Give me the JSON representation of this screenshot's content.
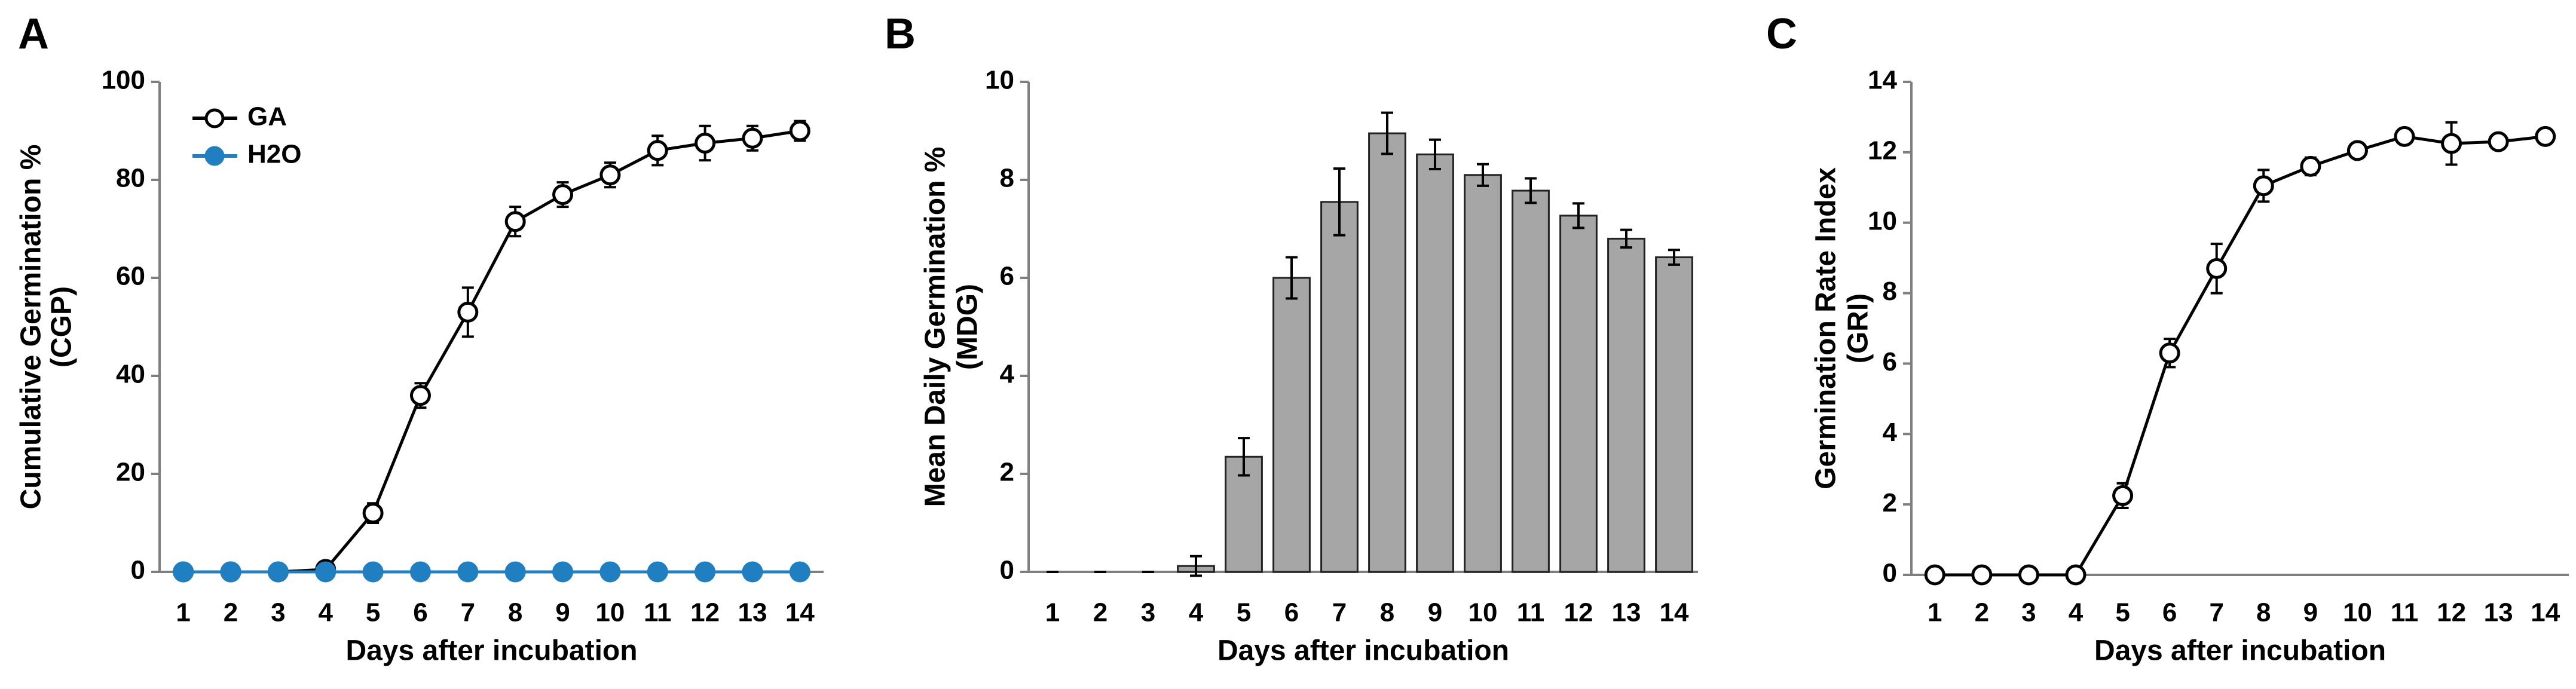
{
  "chart_data": [
    {
      "type": "line",
      "label": "A",
      "y_label": [
        "Cumulative Germination %",
        "(CGP)"
      ],
      "x_label": "Days after incubation",
      "categories": [
        "1",
        "2",
        "3",
        "4",
        "5",
        "6",
        "7",
        "8",
        "9",
        "10",
        "11",
        "12",
        "13",
        "14"
      ],
      "ylim": [
        0,
        100
      ],
      "yticks": [
        0,
        20,
        40,
        60,
        80,
        100
      ],
      "legend": "upper left",
      "series": [
        {
          "name": "GA",
          "color": "#000000",
          "marker": "open",
          "values": [
            0,
            0,
            0,
            0.5,
            12,
            36,
            53,
            71.5,
            77,
            81,
            86,
            87.5,
            88.5,
            90
          ],
          "errors": [
            0,
            0,
            0,
            0.5,
            2,
            2.5,
            5,
            3,
            2.5,
            2.5,
            3,
            3.5,
            2.5,
            2
          ]
        },
        {
          "name": "H2O",
          "color": "#1f7fc0",
          "marker": "filled",
          "values": [
            0,
            0,
            0,
            0,
            0,
            0,
            0,
            0,
            0,
            0,
            0,
            0,
            0,
            0
          ]
        }
      ]
    },
    {
      "type": "bar",
      "label": "B",
      "y_label": [
        "Mean Daily Germination %",
        "(MDG)"
      ],
      "x_label": "Days after incubation",
      "categories": [
        "1",
        "2",
        "3",
        "4",
        "5",
        "6",
        "7",
        "8",
        "9",
        "10",
        "11",
        "12",
        "13",
        "14"
      ],
      "ylim": [
        0,
        10
      ],
      "yticks": [
        0,
        2,
        4,
        6,
        8,
        10
      ],
      "color": "#a6a6a6",
      "values": [
        0,
        0,
        0,
        0.12,
        2.35,
        6.0,
        7.55,
        8.95,
        8.52,
        8.1,
        7.78,
        7.27,
        6.8,
        6.42
      ],
      "errors": [
        0,
        0,
        0,
        0.2,
        0.38,
        0.42,
        0.68,
        0.42,
        0.3,
        0.22,
        0.25,
        0.25,
        0.18,
        0.15
      ]
    },
    {
      "type": "line",
      "label": "C",
      "y_label": [
        "Germination Rate Index",
        "(GRI)"
      ],
      "x_label": "Days after incubation",
      "categories": [
        "1",
        "2",
        "3",
        "4",
        "5",
        "6",
        "7",
        "8",
        "9",
        "10",
        "11",
        "12",
        "13",
        "14"
      ],
      "ylim": [
        0,
        14
      ],
      "yticks": [
        0,
        2,
        4,
        6,
        8,
        10,
        12,
        14
      ],
      "series": [
        {
          "color": "#000000",
          "marker": "open",
          "values": [
            0,
            0,
            0,
            0,
            2.25,
            6.3,
            8.7,
            11.05,
            11.6,
            12.05,
            12.45,
            12.25,
            12.3,
            12.45
          ],
          "errors": [
            0,
            0,
            0,
            0,
            0.35,
            0.4,
            0.7,
            0.45,
            0.25,
            0.15,
            0.15,
            0.6,
            0.1,
            0.1
          ]
        }
      ]
    }
  ]
}
